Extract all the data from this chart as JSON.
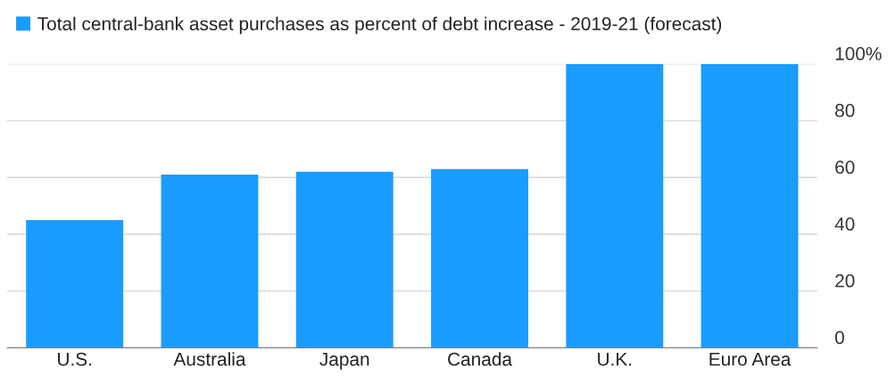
{
  "chart_data": {
    "type": "bar",
    "categories": [
      "U.S.",
      "Australia",
      "Japan",
      "Canada",
      "U.K.",
      "Euro Area"
    ],
    "series": [
      {
        "name": "Total central-bank asset purchases as percent of debt increase - 2019-21 (forecast)",
        "color": "#1a9cff",
        "values": [
          45,
          61,
          62,
          63,
          100,
          100
        ]
      }
    ],
    "ylim": [
      0,
      100
    ],
    "yticks": [
      0,
      20,
      40,
      60,
      80,
      {
        "value": 100,
        "label": "100%"
      }
    ],
    "grid": "y",
    "legend": "top left"
  }
}
